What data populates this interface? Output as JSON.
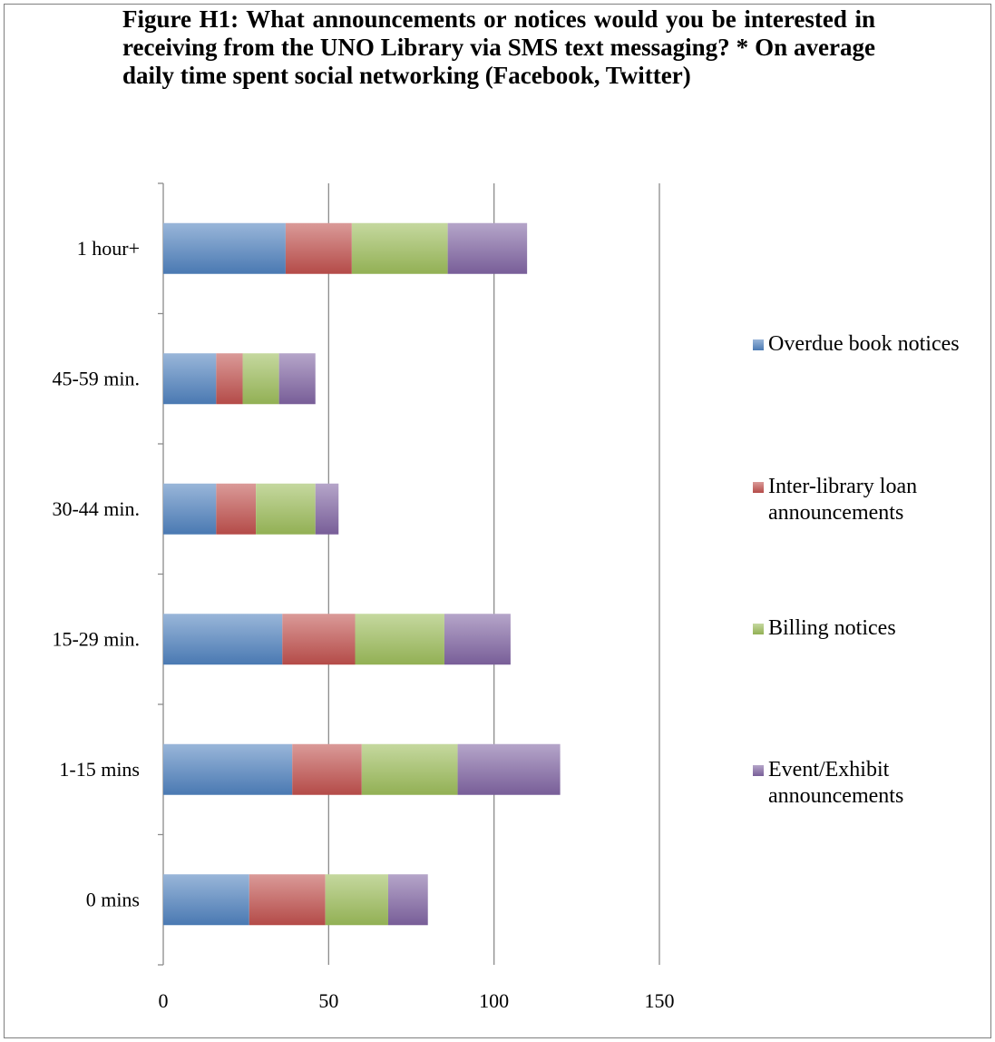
{
  "title": "Figure H1: What announcements or notices would you be interested in receiving from the UNO Library via SMS text messaging?  * On average daily time spent social networking (Facebook, Twitter)",
  "chart_data": {
    "type": "bar",
    "orientation": "horizontal",
    "stacked": true,
    "categories": [
      "0 mins",
      "1-15 mins",
      "15-29 min.",
      "30-44 min.",
      "45-59 min.",
      "1 hour+"
    ],
    "series": [
      {
        "name": "Overdue book notices",
        "color": "#4f81bd",
        "values": [
          26,
          39,
          36,
          16,
          16,
          37
        ]
      },
      {
        "name": "Inter-library loan announcements",
        "color": "#c0504d",
        "values": [
          23,
          21,
          22,
          12,
          8,
          20
        ]
      },
      {
        "name": "Billing notices",
        "color": "#9bbb59",
        "values": [
          19,
          29,
          27,
          18,
          11,
          29
        ]
      },
      {
        "name": "Event/Exhibit announcements",
        "color": "#8064a2",
        "values": [
          12,
          31,
          20,
          7,
          11,
          24
        ]
      }
    ],
    "xlim": [
      0,
      150
    ],
    "xticks": [
      "0",
      "50",
      "100",
      "150"
    ],
    "grid": true,
    "legend_position": "right"
  }
}
